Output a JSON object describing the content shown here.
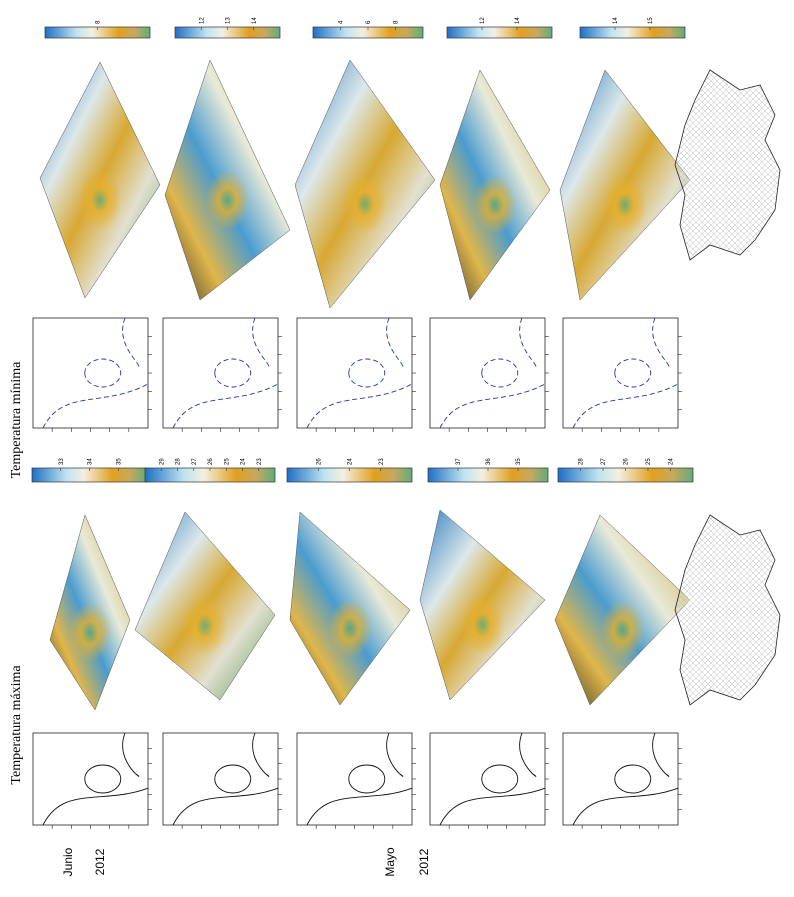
{
  "row_labels": {
    "minima": "Temperatura mínima",
    "maxima": "Temperatura máxima"
  },
  "periods": [
    {
      "month": "Junio",
      "year": "2012"
    },
    {
      "month": "Mayo",
      "year": "2012"
    }
  ],
  "colorbars": {
    "minima": [
      [
        "8"
      ],
      [
        "12",
        "13",
        "14"
      ],
      [
        "4",
        "6",
        "8"
      ],
      [
        "12",
        "14"
      ],
      [
        "14",
        "15"
      ]
    ],
    "maxima": [
      [
        "33",
        "34",
        "35"
      ],
      [
        "29",
        "28",
        "27",
        "26",
        "25",
        "24",
        "23"
      ],
      [
        "26",
        "24",
        "23"
      ],
      [
        "37",
        "36",
        "35"
      ],
      [
        "28",
        "27",
        "26",
        "25",
        "24"
      ]
    ]
  }
}
